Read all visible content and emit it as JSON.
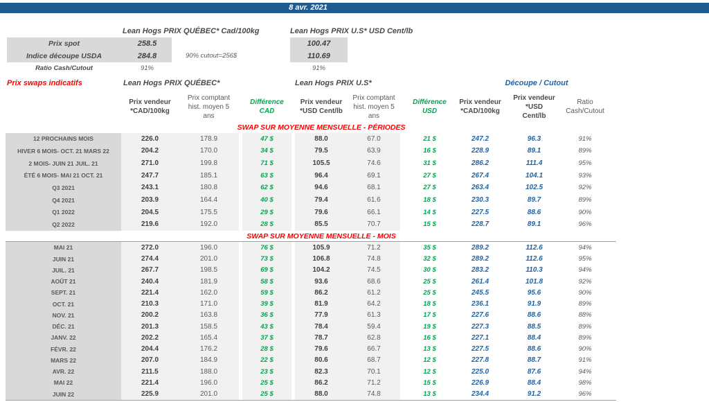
{
  "titlebar": {
    "date": "8 avr. 2021"
  },
  "colors": {
    "banner_blue": "#1F5B8E",
    "accent_blue": "#2063A4",
    "positive_green": "#00A550",
    "alert_red": "#FF0000",
    "label_bg": "#D9D9D9",
    "cell_bg": "#F1F1F1",
    "text_gray": "#595959"
  },
  "summary": {
    "qc_header": "Lean Hogs PRIX QUÉBEC* Cad/100kg",
    "us_header": "Lean Hogs PRIX U.S* USD Cent/lb",
    "rows": [
      {
        "label": "Prix spot",
        "qc": "258.5",
        "us": "100.47",
        "note": "",
        "shaded": true
      },
      {
        "label": "Indice découpe USDA",
        "qc": "284.8",
        "us": "110.69",
        "note": "90% cutout=256$",
        "shaded": true
      },
      {
        "label": "Ratio Cash/Cutout",
        "qc": "91%",
        "us": "91%",
        "note": "",
        "shaded": false
      }
    ]
  },
  "table": {
    "left_title": "Prix swaps indicatifs",
    "groups": {
      "qc": "Lean Hogs PRIX QUÉBEC*",
      "us": "Lean Hogs PRIX U.S*",
      "decoupe": "Découpe / Cutout"
    },
    "column_headers": [
      "Prix vendeur\n*CAD/100kg",
      "Prix comptant\nhist. moyen 5\nans",
      "Différence\nCAD",
      "Prix vendeur\n*USD Cent/lb",
      "Prix comptant\nhist. moyen 5\nans",
      "Différence\nUSD",
      "Prix vendeur\n*CAD/100kg",
      "Prix vendeur\n*USD Cent/lb",
      "Ratio\nCash/Cutout"
    ],
    "sections": [
      {
        "id": "periodes",
        "title": "SWAP SUR MOYENNE MENSUELLE - PÉRIODES",
        "rows": [
          {
            "label": "12 PROCHAINS MOIS",
            "values": [
              "226.0",
              "178.9",
              "47 $",
              "88.0",
              "67.0",
              "21 $",
              "247.2",
              "96.3",
              "91%"
            ]
          },
          {
            "label": "HIVER 6 MOIS- OCT. 21 MARS 22",
            "values": [
              "204.2",
              "170.0",
              "34 $",
              "79.5",
              "63.9",
              "16 $",
              "228.9",
              "89.1",
              "89%"
            ]
          },
          {
            "label": "2 MOIS- JUIN 21 JUIL. 21",
            "values": [
              "271.0",
              "199.8",
              "71 $",
              "105.5",
              "74.6",
              "31 $",
              "286.2",
              "111.4",
              "95%"
            ]
          },
          {
            "label": "ÉTÉ 6 MOIS- MAI 21 OCT. 21",
            "values": [
              "247.7",
              "185.1",
              "63 $",
              "96.4",
              "69.1",
              "27 $",
              "267.4",
              "104.1",
              "93%"
            ]
          },
          {
            "label": "Q3 2021",
            "values": [
              "243.1",
              "180.8",
              "62 $",
              "94.6",
              "68.1",
              "27 $",
              "263.4",
              "102.5",
              "92%"
            ]
          },
          {
            "label": "Q4 2021",
            "values": [
              "203.9",
              "164.4",
              "40 $",
              "79.4",
              "61.6",
              "18 $",
              "230.3",
              "89.7",
              "89%"
            ]
          },
          {
            "label": "Q1 2022",
            "values": [
              "204.5",
              "175.5",
              "29 $",
              "79.6",
              "66.1",
              "14 $",
              "227.5",
              "88.6",
              "90%"
            ]
          },
          {
            "label": "Q2 2022",
            "values": [
              "219.6",
              "192.0",
              "28 $",
              "85.5",
              "70.7",
              "15 $",
              "228.7",
              "89.1",
              "96%"
            ]
          }
        ]
      },
      {
        "id": "mois",
        "title": "SWAP SUR MOYENNE MENSUELLE - MOIS",
        "rows": [
          {
            "label": "MAI 21",
            "values": [
              "272.0",
              "196.0",
              "76 $",
              "105.9",
              "71.2",
              "35 $",
              "289.2",
              "112.6",
              "94%"
            ]
          },
          {
            "label": "JUIN 21",
            "values": [
              "274.4",
              "201.0",
              "73 $",
              "106.8",
              "74.8",
              "32 $",
              "289.2",
              "112.6",
              "95%"
            ]
          },
          {
            "label": "JUIL. 21",
            "values": [
              "267.7",
              "198.5",
              "69 $",
              "104.2",
              "74.5",
              "30 $",
              "283.2",
              "110.3",
              "94%"
            ]
          },
          {
            "label": "AOÛT 21",
            "values": [
              "240.4",
              "181.9",
              "58 $",
              "93.6",
              "68.6",
              "25 $",
              "261.4",
              "101.8",
              "92%"
            ]
          },
          {
            "label": "SEPT. 21",
            "values": [
              "221.4",
              "162.0",
              "59 $",
              "86.2",
              "61.2",
              "25 $",
              "245.5",
              "95.6",
              "90%"
            ]
          },
          {
            "label": "OCT. 21",
            "values": [
              "210.3",
              "171.0",
              "39 $",
              "81.9",
              "64.2",
              "18 $",
              "236.1",
              "91.9",
              "89%"
            ]
          },
          {
            "label": "NOV. 21",
            "values": [
              "200.2",
              "163.8",
              "36 $",
              "77.9",
              "61.3",
              "17 $",
              "227.6",
              "88.6",
              "88%"
            ]
          },
          {
            "label": "DÉC. 21",
            "values": [
              "201.3",
              "158.5",
              "43 $",
              "78.4",
              "59.4",
              "19 $",
              "227.3",
              "88.5",
              "89%"
            ]
          },
          {
            "label": "JANV. 22",
            "values": [
              "202.2",
              "165.4",
              "37 $",
              "78.7",
              "62.8",
              "16 $",
              "227.1",
              "88.4",
              "89%"
            ]
          },
          {
            "label": "FÉVR. 22",
            "values": [
              "204.4",
              "176.2",
              "28 $",
              "79.6",
              "66.7",
              "13 $",
              "227.5",
              "88.6",
              "90%"
            ]
          },
          {
            "label": "MARS 22",
            "values": [
              "207.0",
              "184.9",
              "22 $",
              "80.6",
              "68.7",
              "12 $",
              "227.8",
              "88.7",
              "91%"
            ]
          },
          {
            "label": "AVR. 22",
            "values": [
              "211.5",
              "188.0",
              "23 $",
              "82.3",
              "70.1",
              "12 $",
              "225.0",
              "87.6",
              "94%"
            ]
          },
          {
            "label": "MAI 22",
            "values": [
              "221.4",
              "196.0",
              "25 $",
              "86.2",
              "71.2",
              "15 $",
              "226.9",
              "88.4",
              "98%"
            ]
          },
          {
            "label": "JUIN 22",
            "values": [
              "225.9",
              "201.0",
              "25 $",
              "88.0",
              "74.8",
              "13 $",
              "234.4",
              "91.2",
              "96%"
            ]
          }
        ]
      }
    ]
  }
}
